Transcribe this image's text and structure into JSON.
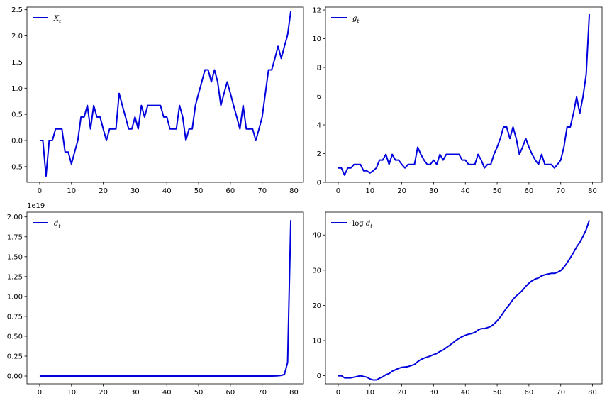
{
  "chart_data": [
    {
      "type": "line",
      "legend": "X_t",
      "legend_base": "X",
      "legend_sub": "t",
      "legend_position": "upper-left",
      "color": "#0000dd",
      "xlim": [
        -4,
        83
      ],
      "ylim": [
        -0.8,
        2.55
      ],
      "xticks": [
        0,
        10,
        20,
        30,
        40,
        50,
        60,
        70,
        80
      ],
      "yticks": [
        -0.5,
        0.0,
        0.5,
        1.0,
        1.5,
        2.0,
        2.5
      ],
      "ytick_labels": [
        "−0.5",
        "0.0",
        "0.5",
        "1.0",
        "1.5",
        "2.0",
        "2.5"
      ],
      "x": [
        0,
        1,
        2,
        3,
        4,
        5,
        6,
        7,
        8,
        9,
        10,
        11,
        12,
        13,
        14,
        15,
        16,
        17,
        18,
        19,
        20,
        21,
        22,
        23,
        24,
        25,
        26,
        27,
        28,
        29,
        30,
        31,
        32,
        33,
        34,
        35,
        36,
        37,
        38,
        39,
        40,
        41,
        42,
        43,
        44,
        45,
        46,
        47,
        48,
        49,
        50,
        51,
        52,
        53,
        54,
        55,
        56,
        57,
        58,
        59,
        60,
        61,
        62,
        63,
        64,
        65,
        66,
        67,
        68,
        69,
        70,
        71,
        72,
        73,
        74,
        75,
        76,
        77,
        78,
        79
      ],
      "values": [
        0,
        0,
        -0.68,
        0,
        0,
        0.22,
        0.22,
        0.22,
        -0.22,
        -0.22,
        -0.45,
        -0.22,
        0,
        0.45,
        0.45,
        0.67,
        0.22,
        0.67,
        0.45,
        0.45,
        0.22,
        0,
        0.22,
        0.22,
        0.22,
        0.9,
        0.67,
        0.45,
        0.22,
        0.22,
        0.45,
        0.22,
        0.67,
        0.45,
        0.67,
        0.67,
        0.67,
        0.67,
        0.67,
        0.45,
        0.45,
        0.22,
        0.22,
        0.22,
        0.67,
        0.45,
        0,
        0.22,
        0.22,
        0.67,
        0.9,
        1.12,
        1.35,
        1.35,
        1.12,
        1.35,
        1.12,
        0.67,
        0.9,
        1.12,
        0.9,
        0.67,
        0.45,
        0.22,
        0.67,
        0.22,
        0.22,
        0.22,
        0,
        0.22,
        0.45,
        0.9,
        1.35,
        1.35,
        1.57,
        1.8,
        1.57,
        1.8,
        2.02,
        2.47
      ]
    },
    {
      "type": "line",
      "legend": "g_t",
      "legend_base": "g",
      "legend_sub": "t",
      "legend_position": "upper-left",
      "color": "#0000dd",
      "xlim": [
        -4,
        83
      ],
      "ylim": [
        0,
        12.2
      ],
      "xticks": [
        0,
        10,
        20,
        30,
        40,
        50,
        60,
        70,
        80
      ],
      "yticks": [
        0,
        2,
        4,
        6,
        8,
        10,
        12
      ],
      "ytick_labels": [
        "0",
        "2",
        "4",
        "6",
        "8",
        "10",
        "12"
      ],
      "x": [
        0,
        1,
        2,
        3,
        4,
        5,
        6,
        7,
        8,
        9,
        10,
        11,
        12,
        13,
        14,
        15,
        16,
        17,
        18,
        19,
        20,
        21,
        22,
        23,
        24,
        25,
        26,
        27,
        28,
        29,
        30,
        31,
        32,
        33,
        34,
        35,
        36,
        37,
        38,
        39,
        40,
        41,
        42,
        43,
        44,
        45,
        46,
        47,
        48,
        49,
        50,
        51,
        52,
        53,
        54,
        55,
        56,
        57,
        58,
        59,
        60,
        61,
        62,
        63,
        64,
        65,
        66,
        67,
        68,
        69,
        70,
        71,
        72,
        73,
        74,
        75,
        76,
        77,
        78,
        79
      ],
      "values": [
        1,
        1,
        0.5,
        1,
        1,
        1.25,
        1.25,
        1.25,
        0.8,
        0.8,
        0.65,
        0.8,
        1,
        1.55,
        1.55,
        1.95,
        1.25,
        1.95,
        1.55,
        1.55,
        1.25,
        1,
        1.25,
        1.25,
        1.25,
        2.45,
        1.95,
        1.55,
        1.25,
        1.25,
        1.55,
        1.25,
        1.95,
        1.55,
        1.95,
        1.95,
        1.95,
        1.95,
        1.95,
        1.55,
        1.55,
        1.25,
        1.25,
        1.25,
        1.95,
        1.55,
        1,
        1.25,
        1.25,
        1.95,
        2.45,
        3.05,
        3.85,
        3.85,
        3.05,
        3.85,
        3.05,
        1.95,
        2.45,
        3.05,
        2.45,
        1.95,
        1.55,
        1.25,
        1.95,
        1.25,
        1.25,
        1.25,
        1,
        1.25,
        1.55,
        2.45,
        3.85,
        3.85,
        4.8,
        5.95,
        4.8,
        5.95,
        7.5,
        11.7
      ]
    },
    {
      "type": "line",
      "legend": "d_t",
      "legend_base": "d",
      "legend_sub": "t",
      "legend_position": "upper-left",
      "color": "#0000dd",
      "offset_label": "1e19",
      "xlim": [
        -4,
        83
      ],
      "ylim": [
        -0.098,
        2.06
      ],
      "xticks": [
        0,
        10,
        20,
        30,
        40,
        50,
        60,
        70,
        80
      ],
      "yticks": [
        0.0,
        0.25,
        0.5,
        0.75,
        1.0,
        1.25,
        1.5,
        1.75,
        2.0
      ],
      "ytick_labels": [
        "0.00",
        "0.25",
        "0.50",
        "0.75",
        "1.00",
        "1.25",
        "1.50",
        "1.75",
        "2.00"
      ],
      "x": [
        0,
        1,
        2,
        3,
        4,
        5,
        6,
        7,
        8,
        9,
        10,
        11,
        12,
        13,
        14,
        15,
        16,
        17,
        18,
        19,
        20,
        21,
        22,
        23,
        24,
        25,
        26,
        27,
        28,
        29,
        30,
        31,
        32,
        33,
        34,
        35,
        36,
        37,
        38,
        39,
        40,
        41,
        42,
        43,
        44,
        45,
        46,
        47,
        48,
        49,
        50,
        51,
        52,
        53,
        54,
        55,
        56,
        57,
        58,
        59,
        60,
        61,
        62,
        63,
        64,
        65,
        66,
        67,
        68,
        69,
        70,
        71,
        72,
        73,
        74,
        75,
        76,
        77,
        78,
        79
      ],
      "values": [
        0,
        0,
        0,
        0,
        0,
        0,
        0,
        0,
        0,
        0,
        0,
        0,
        0,
        0,
        0,
        0,
        0,
        0,
        0,
        0,
        0,
        0,
        0,
        0,
        0,
        0,
        0,
        0,
        0,
        0,
        0,
        0,
        0,
        0,
        0,
        0,
        0,
        0,
        0,
        0,
        0,
        0,
        0,
        0,
        0,
        0,
        0,
        0,
        0,
        0,
        0,
        0,
        0,
        0,
        0,
        0,
        0,
        0,
        0,
        0,
        0,
        0,
        0,
        0,
        0,
        0,
        0,
        0,
        0,
        0,
        0,
        0,
        0,
        0,
        0.001,
        0.003,
        0.008,
        0.02,
        0.17,
        1.96
      ]
    },
    {
      "type": "line",
      "legend": "log d_t",
      "legend_prefix": "log",
      "legend_base": "d",
      "legend_sub": "t",
      "legend_position": "upper-left",
      "color": "#0000dd",
      "xlim": [
        -4,
        83
      ],
      "ylim": [
        -2.3,
        46.5
      ],
      "xticks": [
        0,
        10,
        20,
        30,
        40,
        50,
        60,
        70,
        80
      ],
      "yticks": [
        0,
        10,
        20,
        30,
        40
      ],
      "ytick_labels": [
        "0",
        "10",
        "20",
        "30",
        "40"
      ],
      "x": [
        0,
        1,
        2,
        3,
        4,
        5,
        6,
        7,
        8,
        9,
        10,
        11,
        12,
        13,
        14,
        15,
        16,
        17,
        18,
        19,
        20,
        21,
        22,
        23,
        24,
        25,
        26,
        27,
        28,
        29,
        30,
        31,
        32,
        33,
        34,
        35,
        36,
        37,
        38,
        39,
        40,
        41,
        42,
        43,
        44,
        45,
        46,
        47,
        48,
        49,
        50,
        51,
        52,
        53,
        54,
        55,
        56,
        57,
        58,
        59,
        60,
        61,
        62,
        63,
        64,
        65,
        66,
        67,
        68,
        69,
        70,
        71,
        72,
        73,
        74,
        75,
        76,
        77,
        78,
        79
      ],
      "values": [
        0,
        0,
        -0.6,
        -0.6,
        -0.6,
        -0.4,
        -0.2,
        0,
        -0.2,
        -0.4,
        -0.9,
        -1.2,
        -1.2,
        -0.7,
        -0.3,
        0.3,
        0.6,
        1.3,
        1.7,
        2.1,
        2.4,
        2.5,
        2.6,
        2.9,
        3.2,
        4.0,
        4.6,
        5.0,
        5.3,
        5.6,
        6.0,
        6.3,
        6.9,
        7.3,
        8.0,
        8.6,
        9.3,
        10.0,
        10.6,
        11.1,
        11.5,
        11.8,
        12.0,
        12.3,
        13.0,
        13.4,
        13.4,
        13.7,
        14.0,
        14.7,
        15.6,
        16.7,
        18.0,
        19.3,
        20.4,
        21.7,
        22.7,
        23.4,
        24.3,
        25.4,
        26.3,
        27.0,
        27.5,
        27.8,
        28.4,
        28.7,
        28.9,
        29.1,
        29.1,
        29.4,
        29.9,
        30.8,
        32.1,
        33.5,
        35.0,
        36.6,
        37.9,
        39.6,
        41.5,
        44.2
      ]
    }
  ]
}
